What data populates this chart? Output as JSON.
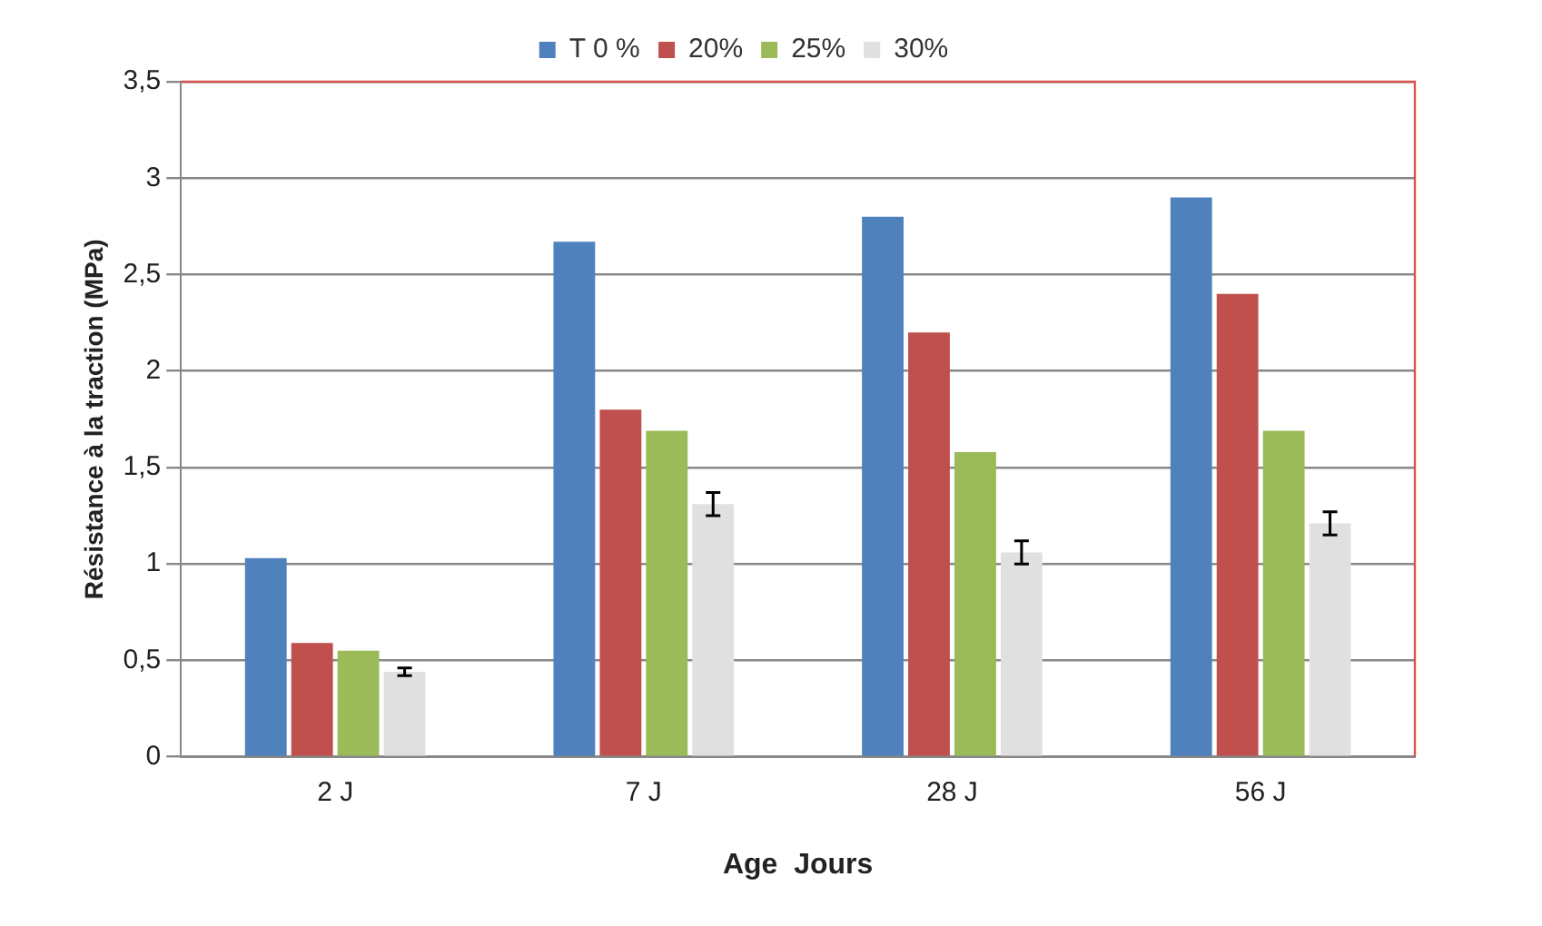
{
  "chart_data": {
    "type": "bar",
    "xlabel": "Age  Jours",
    "ylabel": "Résistance à la traction (MPa)",
    "categories": [
      "2 J",
      "7 J",
      "28 J",
      "56 J"
    ],
    "series": [
      {
        "name": "T 0 %",
        "color": "#4f81bd",
        "values": [
          1.03,
          2.67,
          2.8,
          2.9
        ]
      },
      {
        "name": "20%",
        "color": "#c0504d",
        "values": [
          0.59,
          1.8,
          2.2,
          2.4
        ]
      },
      {
        "name": "25%",
        "color": "#9bbb59",
        "values": [
          0.55,
          1.69,
          1.58,
          1.69
        ]
      },
      {
        "name": "30%",
        "color": "#e0e0e0",
        "values": [
          0.44,
          1.31,
          1.06,
          1.21
        ],
        "errors": [
          0.02,
          0.06,
          0.06,
          0.06
        ]
      }
    ],
    "ylim": [
      0,
      3.5
    ],
    "yticks": [
      0,
      {
        "value": 0.5,
        "label": "0,5"
      },
      1,
      {
        "value": 1.5,
        "label": "1,5"
      },
      2,
      {
        "value": 2.5,
        "label": "2,5"
      },
      3,
      {
        "value": 3.5,
        "label": "3,5"
      }
    ],
    "grid": "y",
    "legend": "top"
  }
}
